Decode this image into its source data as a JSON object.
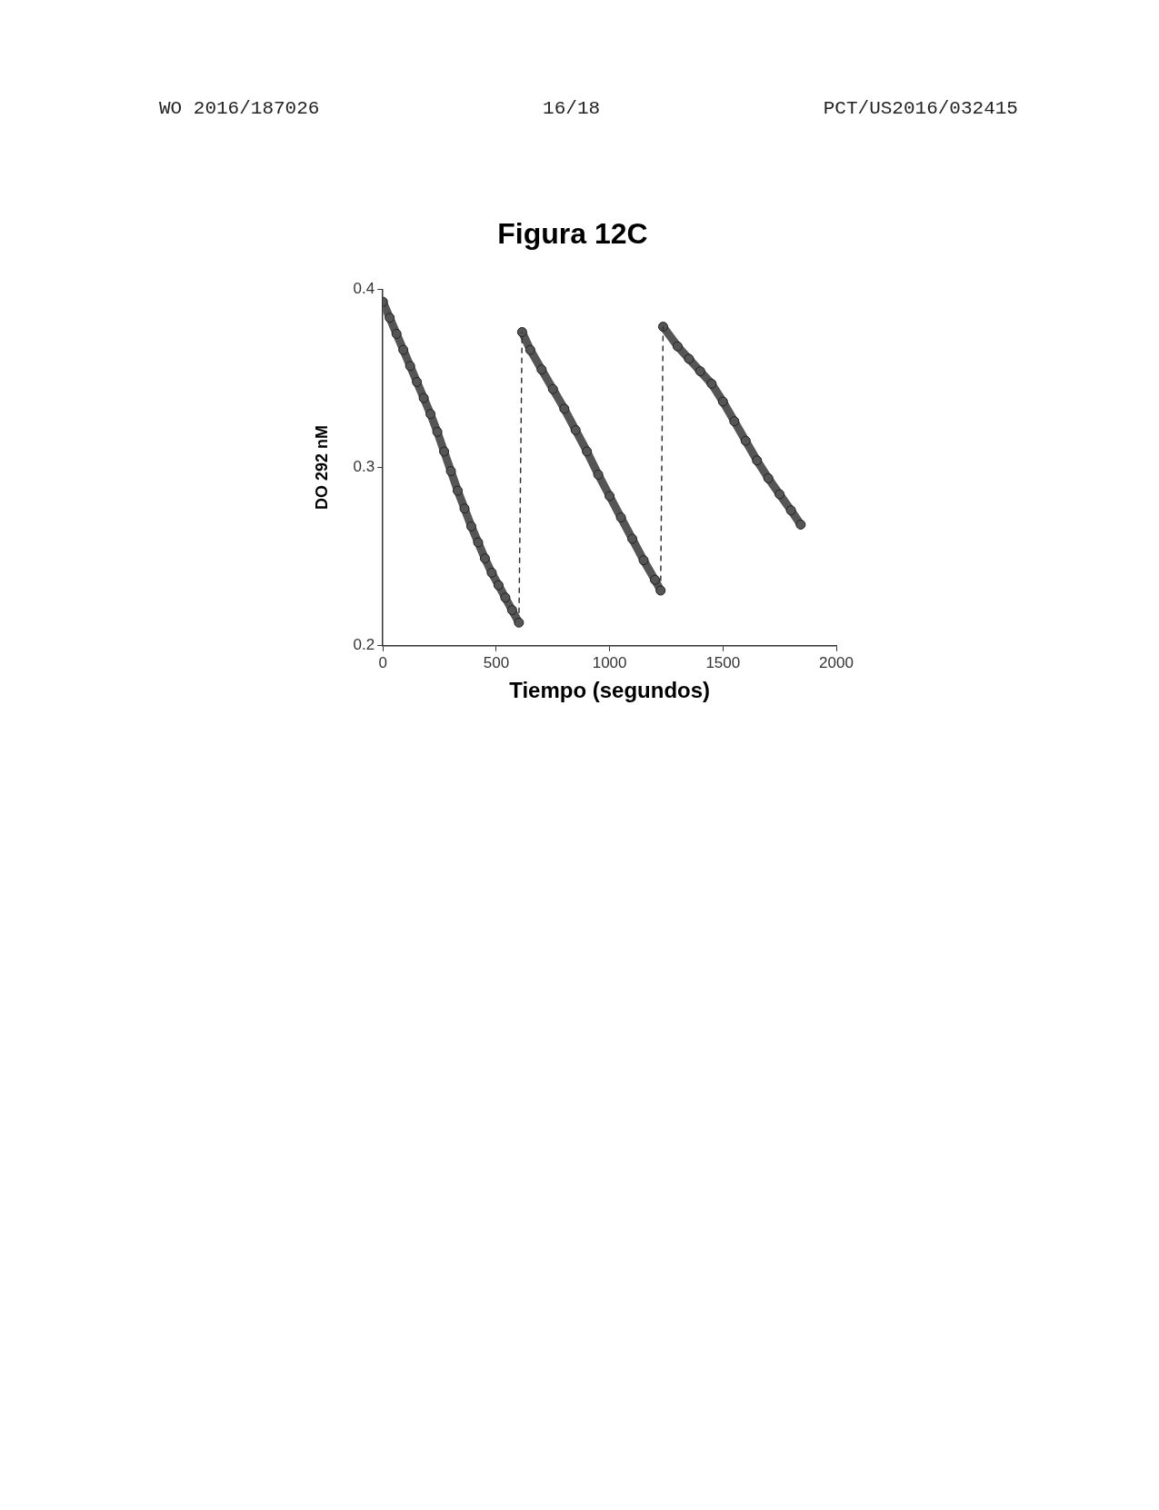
{
  "chart_data": {
    "type": "line",
    "title": "Figura 12C",
    "xlabel": "Tiempo (segundos)",
    "ylabel": "DO 292 nM",
    "annotations": [
      "WO 2016/187026",
      "16/18",
      "PCT/US2016/032415"
    ],
    "xlim": [
      0,
      2000
    ],
    "xticks": [
      0,
      500,
      1000,
      1500,
      2000
    ],
    "ylim": [
      0.2,
      0.4
    ],
    "yticks": [
      0.2,
      0.3,
      0.4
    ],
    "grid": false,
    "legend": false,
    "marker": "circle",
    "series": [
      {
        "color": "#555555",
        "x": [
          0,
          30,
          60,
          90,
          120,
          150,
          180,
          210,
          240,
          270,
          300,
          330,
          360,
          390,
          420,
          450,
          480,
          510,
          540,
          570,
          600
        ],
        "values": [
          0.393,
          0.384,
          0.375,
          0.366,
          0.357,
          0.348,
          0.339,
          0.33,
          0.32,
          0.309,
          0.298,
          0.287,
          0.277,
          0.267,
          0.258,
          0.249,
          0.241,
          0.234,
          0.227,
          0.22,
          0.213
        ]
      },
      {
        "color": "#333333",
        "type": "line",
        "marker": "none",
        "line_style": "dashed",
        "x": [
          600,
          614
        ],
        "values": [
          0.213,
          0.376
        ]
      },
      {
        "color": "#555555",
        "x": [
          614,
          650,
          700,
          750,
          800,
          850,
          900,
          950,
          1000,
          1050,
          1100,
          1150,
          1200,
          1225
        ],
        "values": [
          0.376,
          0.366,
          0.355,
          0.344,
          0.333,
          0.321,
          0.309,
          0.296,
          0.284,
          0.272,
          0.26,
          0.248,
          0.237,
          0.231
        ]
      },
      {
        "color": "#333333",
        "type": "line",
        "marker": "none",
        "line_style": "dashed",
        "x": [
          1225,
          1236
        ],
        "values": [
          0.231,
          0.379
        ]
      },
      {
        "color": "#555555",
        "x": [
          1236,
          1300,
          1350,
          1400,
          1450,
          1500,
          1550,
          1600,
          1650,
          1700,
          1750,
          1800,
          1843
        ],
        "values": [
          0.379,
          0.368,
          0.361,
          0.354,
          0.347,
          0.337,
          0.326,
          0.315,
          0.304,
          0.294,
          0.285,
          0.276,
          0.268
        ]
      }
    ]
  }
}
